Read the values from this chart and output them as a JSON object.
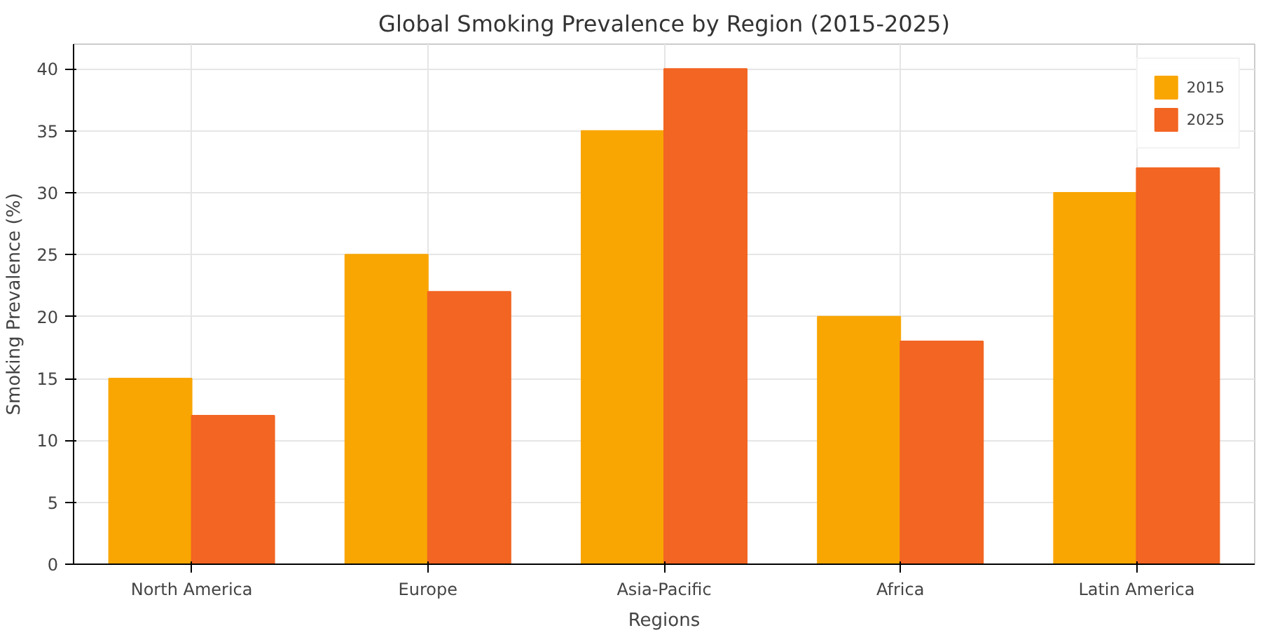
{
  "chart_data": {
    "type": "bar",
    "title": "Global Smoking Prevalence by Region (2015-2025)",
    "xlabel": "Regions",
    "ylabel": "Smoking Prevalence (%)",
    "categories": [
      "North America",
      "Europe",
      "Asia-Pacific",
      "Africa",
      "Latin America"
    ],
    "series": [
      {
        "name": "2015",
        "color": "#f9a602",
        "values": [
          15,
          25,
          35,
          20,
          30
        ]
      },
      {
        "name": "2025",
        "color": "#f26522",
        "values": [
          12,
          22,
          40,
          18,
          32
        ]
      }
    ],
    "ylim": [
      0,
      42
    ],
    "yticks": [
      0,
      5,
      10,
      15,
      20,
      25,
      30,
      35,
      40
    ],
    "grid": true,
    "legend": "top right"
  }
}
